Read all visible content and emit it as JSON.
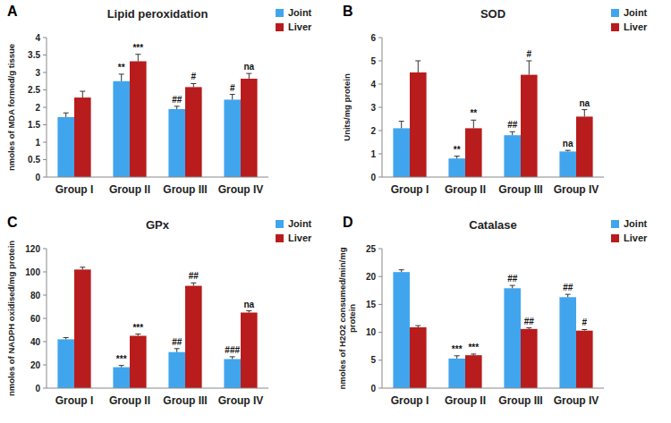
{
  "chart_data": [
    {
      "type": "bar",
      "panel_label": "A",
      "title": "Lipid peroxidation",
      "y_label": "nmoles of MDA formed/g tissue",
      "categories": [
        "Group I",
        "Group II",
        "Group III",
        "Group IV"
      ],
      "series": [
        {
          "name": "Joint",
          "color": "#41a5ee",
          "values": [
            1.72,
            2.75,
            1.95,
            2.22
          ],
          "errors": [
            0.12,
            0.2,
            0.08,
            0.15
          ],
          "annotations": [
            null,
            "**",
            "##",
            "#"
          ]
        },
        {
          "name": "Liver",
          "color": "#b81c1c",
          "values": [
            2.28,
            3.32,
            2.58,
            2.82
          ],
          "errors": [
            0.18,
            0.2,
            0.1,
            0.15
          ],
          "annotations": [
            null,
            "***",
            "#",
            "na"
          ]
        }
      ],
      "ylim": [
        0,
        4
      ],
      "yticks": [
        0,
        0.5,
        1,
        1.5,
        2,
        2.5,
        3,
        3.5,
        4
      ],
      "grid": false,
      "legend": "top-right"
    },
    {
      "type": "bar",
      "panel_label": "B",
      "title": "SOD",
      "y_label": "Units/mg protein",
      "categories": [
        "Group I",
        "Group II",
        "Group III",
        "Group IV"
      ],
      "series": [
        {
          "name": "Joint",
          "color": "#41a5ee",
          "values": [
            2.1,
            0.8,
            1.8,
            1.1
          ],
          "errors": [
            0.3,
            0.1,
            0.15,
            0.05
          ],
          "annotations": [
            null,
            "**",
            "##",
            "na"
          ]
        },
        {
          "name": "Liver",
          "color": "#b81c1c",
          "values": [
            4.5,
            2.1,
            4.4,
            2.6
          ],
          "errors": [
            0.5,
            0.35,
            0.6,
            0.3
          ],
          "annotations": [
            null,
            "**",
            "#",
            "na"
          ]
        }
      ],
      "ylim": [
        0,
        6
      ],
      "yticks": [
        0,
        1,
        2,
        3,
        4,
        5,
        6
      ],
      "grid": false,
      "legend": "top-right"
    },
    {
      "type": "bar",
      "panel_label": "C",
      "title": "GPx",
      "y_label": "nmoles of NADPH oxidised/mg protein",
      "categories": [
        "Group I",
        "Group II",
        "Group III",
        "Group IV"
      ],
      "series": [
        {
          "name": "Joint",
          "color": "#41a5ee",
          "values": [
            42,
            18,
            31,
            25
          ],
          "errors": [
            1.5,
            1.5,
            3,
            2
          ],
          "annotations": [
            null,
            "***",
            "##",
            "###"
          ]
        },
        {
          "name": "Liver",
          "color": "#b81c1c",
          "values": [
            102,
            45,
            88,
            65
          ],
          "errors": [
            2,
            1.5,
            2.5,
            1.5
          ],
          "annotations": [
            null,
            "***",
            "##",
            "na"
          ]
        }
      ],
      "ylim": [
        0,
        120
      ],
      "yticks": [
        0,
        20,
        40,
        60,
        80,
        100,
        120
      ],
      "grid": false,
      "legend": "top-right"
    },
    {
      "type": "bar",
      "panel_label": "D",
      "title": "Catalase",
      "y_label": "nmoles of H2O2 consumed/min/mg protein",
      "categories": [
        "Group I",
        "Group II",
        "Group III",
        "Group IV"
      ],
      "series": [
        {
          "name": "Joint",
          "color": "#41a5ee",
          "values": [
            20.8,
            5.3,
            17.9,
            16.3
          ],
          "errors": [
            0.4,
            0.5,
            0.5,
            0.5
          ],
          "annotations": [
            null,
            "***",
            "##",
            "##"
          ]
        },
        {
          "name": "Liver",
          "color": "#b81c1c",
          "values": [
            10.9,
            5.9,
            10.6,
            10.3
          ],
          "errors": [
            0.3,
            0.2,
            0.2,
            0.2
          ],
          "annotations": [
            null,
            "***",
            "##",
            "#"
          ]
        }
      ],
      "ylim": [
        0,
        25
      ],
      "yticks": [
        0,
        5,
        10,
        15,
        20,
        25
      ],
      "grid": false,
      "legend": "top-right"
    }
  ]
}
